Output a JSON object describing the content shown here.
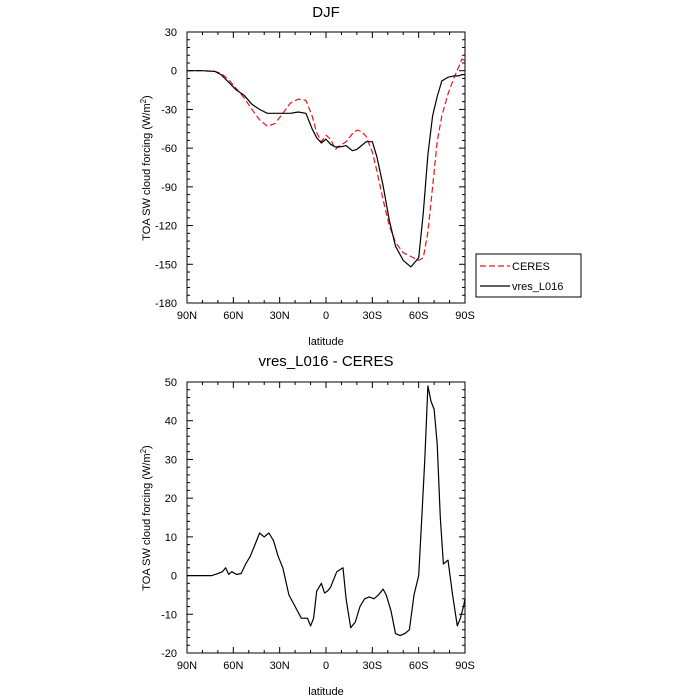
{
  "chart_data": [
    {
      "type": "line",
      "title": "DJF",
      "xlabel": "latitude",
      "ylabel": "TOA SW cloud forcing (W/m",
      "ylabel_sup": "2",
      "ylabel_close": ")",
      "xlim": [
        90,
        -90
      ],
      "ylim": [
        -180,
        30
      ],
      "xticks": [
        {
          "value": 90,
          "label": "90N"
        },
        {
          "value": 60,
          "label": "60N"
        },
        {
          "value": 30,
          "label": "30N"
        },
        {
          "value": 0,
          "label": "0"
        },
        {
          "value": -30,
          "label": "30S"
        },
        {
          "value": -60,
          "label": "60S"
        },
        {
          "value": -90,
          "label": "90S"
        }
      ],
      "yticks": [
        {
          "value": 30,
          "label": "30"
        },
        {
          "value": 0,
          "label": "0"
        },
        {
          "value": -30,
          "label": "-30"
        },
        {
          "value": -60,
          "label": "-60"
        },
        {
          "value": -90,
          "label": "-90"
        },
        {
          "value": -120,
          "label": "-120"
        },
        {
          "value": -150,
          "label": "-150"
        },
        {
          "value": -180,
          "label": "-180"
        }
      ],
      "legend": "right",
      "series": [
        {
          "name": "CERES",
          "color": "#e8141c",
          "dash": "dashed",
          "x": [
            90,
            80,
            72,
            68,
            63,
            58,
            53,
            48,
            43,
            38,
            33,
            28,
            23,
            18,
            13,
            9,
            6,
            3,
            0,
            -3,
            -6,
            -9,
            -13,
            -17,
            -20,
            -23,
            -26,
            -30,
            -33,
            -37,
            -41,
            -45,
            -50,
            -55,
            -60,
            -63,
            -66,
            -69,
            -72,
            -75,
            -79,
            -83,
            -86,
            -88,
            -90
          ],
          "y": [
            0,
            0,
            -0.5,
            -2,
            -7,
            -14,
            -21,
            -30,
            -38,
            -43,
            -41,
            -33,
            -25,
            -22,
            -23,
            -35,
            -48,
            -55,
            -50,
            -53,
            -61,
            -58,
            -55,
            -49,
            -46,
            -47,
            -51,
            -63,
            -78,
            -100,
            -120,
            -133,
            -141,
            -144,
            -147,
            -145,
            -125,
            -90,
            -55,
            -35,
            -18,
            -5,
            3,
            9,
            8
          ]
        },
        {
          "name": "vres_L016",
          "color": "#000000",
          "dash": "solid",
          "x": [
            90,
            80,
            72,
            68,
            63,
            58,
            53,
            48,
            43,
            38,
            33,
            28,
            23,
            18,
            13,
            9,
            6,
            3,
            0,
            -3,
            -6,
            -9,
            -13,
            -17,
            -20,
            -23,
            -26,
            -30,
            -33,
            -37,
            -41,
            -45,
            -50,
            -55,
            -60,
            -63,
            -66,
            -69,
            -72,
            -75,
            -79,
            -83,
            -86,
            -88,
            -90
          ],
          "y": [
            0,
            0,
            -0.5,
            -3,
            -9,
            -15,
            -19,
            -26,
            -30,
            -33,
            -33,
            -33,
            -33,
            -32,
            -33,
            -45,
            -52,
            -56,
            -53,
            -57,
            -59,
            -59,
            -58,
            -62,
            -61,
            -58,
            -55,
            -55,
            -67,
            -89,
            -116,
            -136,
            -147,
            -152,
            -145,
            -110,
            -65,
            -35,
            -20,
            -8,
            -5,
            -4,
            -4,
            -3,
            -3
          ]
        }
      ]
    },
    {
      "type": "line",
      "title": "vres_L016 - CERES",
      "xlabel": "latitude",
      "ylabel": "TOA SW cloud forcing (W/m",
      "ylabel_sup": "2",
      "ylabel_close": ")",
      "xlim": [
        90,
        -90
      ],
      "ylim": [
        -20,
        50
      ],
      "xticks": [
        {
          "value": 90,
          "label": "90N"
        },
        {
          "value": 60,
          "label": "60N"
        },
        {
          "value": 30,
          "label": "30N"
        },
        {
          "value": 0,
          "label": "0"
        },
        {
          "value": -30,
          "label": "30S"
        },
        {
          "value": -60,
          "label": "60S"
        },
        {
          "value": -90,
          "label": "90S"
        }
      ],
      "yticks": [
        {
          "value": 50,
          "label": "50"
        },
        {
          "value": 40,
          "label": "40"
        },
        {
          "value": 30,
          "label": "30"
        },
        {
          "value": 20,
          "label": "20"
        },
        {
          "value": 10,
          "label": "10"
        },
        {
          "value": 0,
          "label": "0"
        },
        {
          "value": -10,
          "label": "-10"
        },
        {
          "value": -20,
          "label": "-20"
        }
      ],
      "series": [
        {
          "color": "#000000",
          "dash": "solid",
          "x": [
            90,
            80,
            74,
            70,
            67,
            65,
            63,
            61,
            58,
            55,
            52,
            49,
            46,
            43,
            40,
            37,
            34,
            31,
            28,
            24,
            20,
            16,
            12,
            10,
            8,
            6,
            3,
            1,
            -1,
            -3,
            -5,
            -7,
            -9,
            -11,
            -13,
            -16,
            -19,
            -22,
            -25,
            -28,
            -31,
            -34,
            -37,
            -39,
            -42,
            -45,
            -48,
            -51,
            -54,
            -57,
            -60,
            -62,
            -64,
            -66,
            -68,
            -70,
            -72,
            -74,
            -76,
            -79,
            -82,
            -85,
            -87,
            -89,
            -90
          ],
          "y": [
            0,
            0,
            0,
            0.5,
            1,
            2,
            0.3,
            1,
            0.3,
            0.5,
            3,
            5,
            8,
            11,
            10,
            11,
            9,
            5,
            2,
            -5,
            -8,
            -11,
            -11,
            -13,
            -11,
            -4,
            -2,
            -4.5,
            -4,
            -3,
            -1,
            1,
            1.5,
            2,
            -6,
            -13.5,
            -12,
            -8,
            -6,
            -5.5,
            -6,
            -5,
            -3.5,
            -5,
            -9,
            -15,
            -15.5,
            -15,
            -14,
            -5,
            0,
            15,
            30,
            49,
            45,
            43,
            34,
            15,
            3,
            4,
            -5,
            -13,
            -11,
            -8,
            -6
          ]
        }
      ]
    }
  ]
}
